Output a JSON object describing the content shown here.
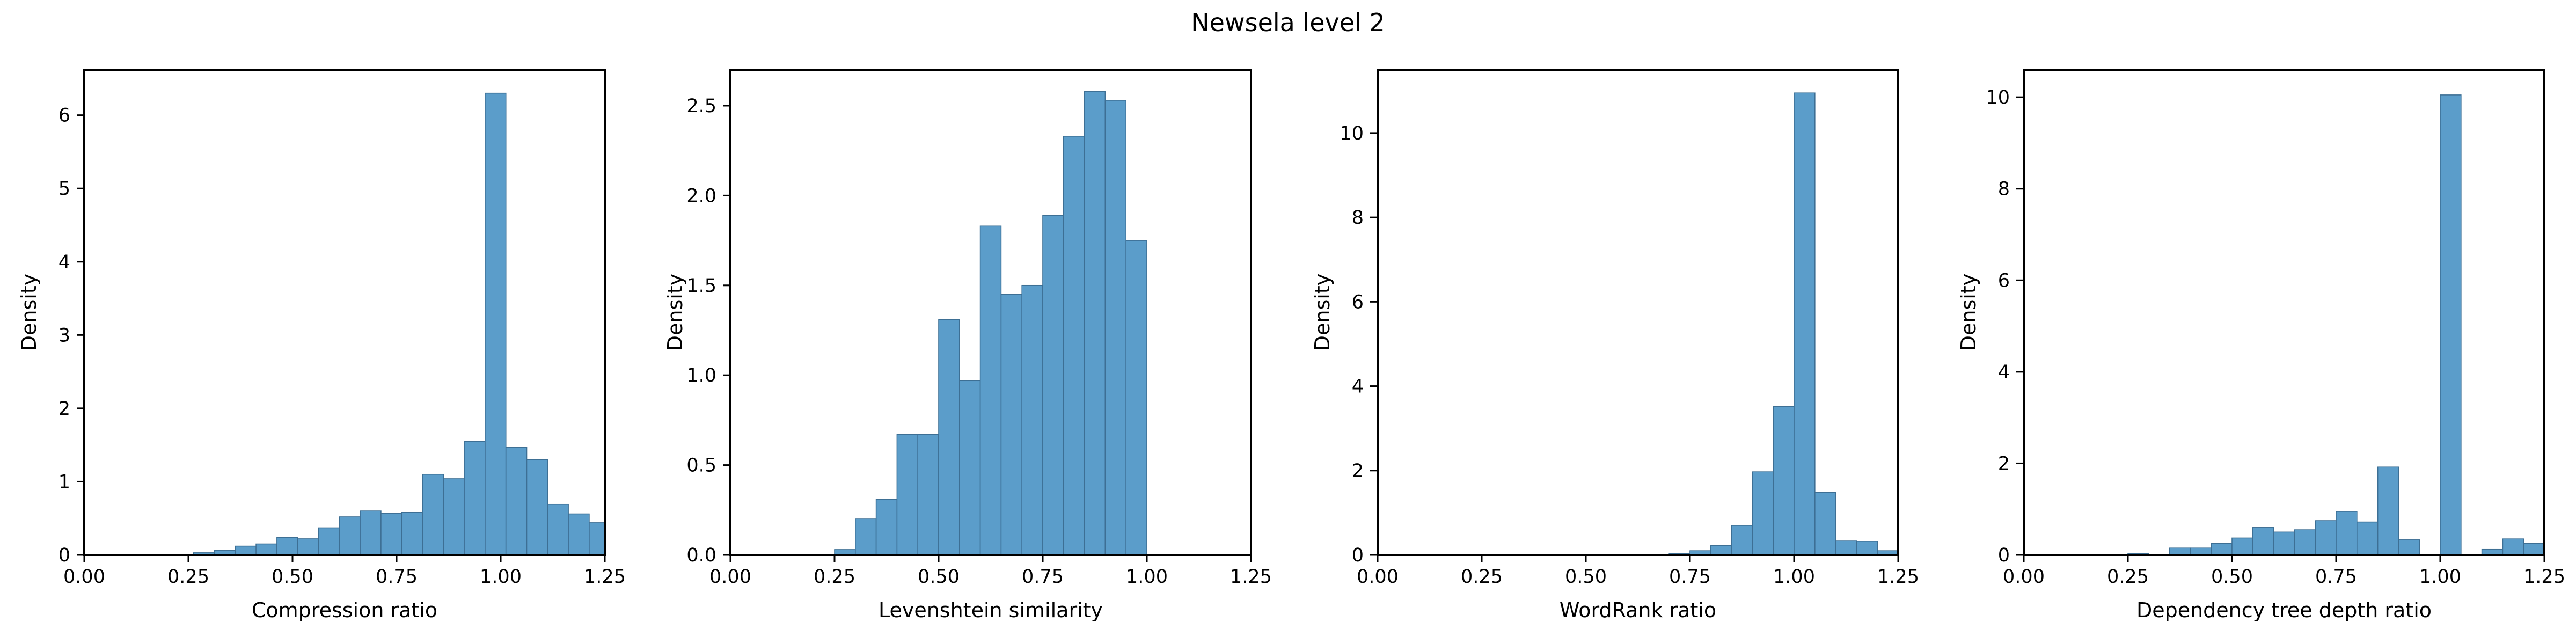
{
  "figure": {
    "suptitle": "Newsela level 2"
  },
  "colors": {
    "bar_fill": "#5b9dca",
    "bar_edge": "#3d6f94",
    "axes": "#000000",
    "background": "#ffffff"
  },
  "chart_data": [
    {
      "type": "histogram",
      "xlabel": "Compression ratio",
      "ylabel": "Density",
      "xlim": [
        0.0,
        1.25
      ],
      "ylim": [
        0,
        6.62
      ],
      "xticks": [
        "0.00",
        "0.25",
        "0.50",
        "0.75",
        "1.00",
        "1.25"
      ],
      "xtick_values": [
        0.0,
        0.25,
        0.5,
        0.75,
        1.0,
        1.25
      ],
      "yticks": [
        "0",
        "1",
        "2",
        "3",
        "4",
        "5",
        "6"
      ],
      "ytick_values": [
        0,
        1,
        2,
        3,
        4,
        5,
        6
      ],
      "bins": {
        "start": [
          0.2625,
          0.3125,
          0.3625,
          0.4125,
          0.4625,
          0.5125,
          0.5625,
          0.6125,
          0.6625,
          0.7125,
          0.7625,
          0.8125,
          0.8625,
          0.9125,
          0.9625,
          1.0125,
          1.0625,
          1.1125,
          1.1625,
          1.2125
        ],
        "width": 0.05,
        "density": [
          0.03,
          0.06,
          0.12,
          0.15,
          0.24,
          0.22,
          0.37,
          0.52,
          0.6,
          0.57,
          0.58,
          1.1,
          1.04,
          1.55,
          6.3,
          1.47,
          1.3,
          0.69,
          0.56,
          0.44
        ]
      }
    },
    {
      "type": "histogram",
      "xlabel": "Levenshtein similarity",
      "ylabel": "Density",
      "xlim": [
        0.0,
        1.25
      ],
      "ylim": [
        0,
        2.7
      ],
      "xticks": [
        "0.00",
        "0.25",
        "0.50",
        "0.75",
        "1.00",
        "1.25"
      ],
      "xtick_values": [
        0.0,
        0.25,
        0.5,
        0.75,
        1.0,
        1.25
      ],
      "yticks": [
        "0.0",
        "0.5",
        "1.0",
        "1.5",
        "2.0",
        "2.5"
      ],
      "ytick_values": [
        0.0,
        0.5,
        1.0,
        1.5,
        2.0,
        2.5
      ],
      "bins": {
        "start": [
          0.25,
          0.3,
          0.35,
          0.4,
          0.45,
          0.5,
          0.55,
          0.6,
          0.65,
          0.7,
          0.75,
          0.8,
          0.85,
          0.9,
          0.95
        ],
        "width": 0.05,
        "density": [
          0.03,
          0.2,
          0.31,
          0.67,
          0.67,
          1.31,
          0.97,
          1.83,
          1.45,
          1.5,
          1.89,
          2.33,
          2.58,
          2.53,
          1.75
        ]
      }
    },
    {
      "type": "histogram",
      "xlabel": "WordRank ratio",
      "ylabel": "Density",
      "xlim": [
        0.0,
        1.25
      ],
      "ylim": [
        0,
        11.5
      ],
      "xticks": [
        "0.00",
        "0.25",
        "0.50",
        "0.75",
        "1.00",
        "1.25"
      ],
      "xtick_values": [
        0.0,
        0.25,
        0.5,
        0.75,
        1.0,
        1.25
      ],
      "yticks": [
        "0",
        "2",
        "4",
        "6",
        "8",
        "10"
      ],
      "ytick_values": [
        0,
        2,
        4,
        6,
        8,
        10
      ],
      "bins": {
        "start": [
          0.7,
          0.75,
          0.8,
          0.85,
          0.9,
          0.95,
          1.0,
          1.05,
          1.1,
          1.15,
          1.2
        ],
        "width": 0.05,
        "density": [
          0.03,
          0.1,
          0.22,
          0.7,
          1.97,
          3.52,
          10.95,
          1.48,
          0.33,
          0.32,
          0.1
        ]
      }
    },
    {
      "type": "histogram",
      "xlabel": "Dependency tree depth ratio",
      "ylabel": "Density",
      "xlim": [
        0.0,
        1.25
      ],
      "ylim": [
        0,
        10.6
      ],
      "xticks": [
        "0.00",
        "0.25",
        "0.50",
        "0.75",
        "1.00",
        "1.25"
      ],
      "xtick_values": [
        0.0,
        0.25,
        0.5,
        0.75,
        1.0,
        1.25
      ],
      "yticks": [
        "0",
        "2",
        "4",
        "6",
        "8",
        "10"
      ],
      "ytick_values": [
        0,
        2,
        4,
        6,
        8,
        10
      ],
      "bins": {
        "start": [
          0.25,
          0.3,
          0.35,
          0.4,
          0.45,
          0.5,
          0.55,
          0.6,
          0.65,
          0.7,
          0.75,
          0.8,
          0.85,
          0.9,
          0.95,
          1.0,
          1.05,
          1.1,
          1.15,
          1.2
        ],
        "width": 0.05,
        "density": [
          0.03,
          0.0,
          0.15,
          0.15,
          0.25,
          0.37,
          0.6,
          0.5,
          0.55,
          0.75,
          0.95,
          0.72,
          1.92,
          0.33,
          0.0,
          10.05,
          0.0,
          0.12,
          0.35,
          0.25
        ]
      }
    }
  ]
}
